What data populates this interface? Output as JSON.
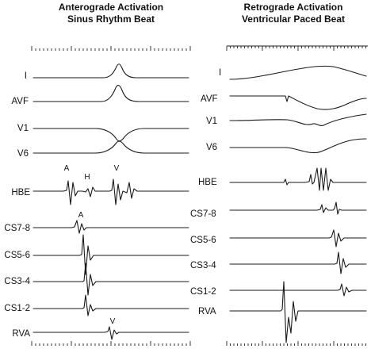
{
  "panels": [
    {
      "id": "anterograde",
      "title_line1": "Anterograde Activation",
      "title_line2": "Sinus Rhythm Beat",
      "leads": [
        {
          "label": "I"
        },
        {
          "label": "AVF"
        },
        {
          "label": "V1"
        },
        {
          "label": "V6"
        },
        {
          "label": "HBE"
        },
        {
          "label": "CS7-8"
        },
        {
          "label": "CS5-6"
        },
        {
          "label": "CS3-4"
        },
        {
          "label": "CS1-2"
        },
        {
          "label": "RVA"
        }
      ],
      "annotations": [
        {
          "text": "A",
          "lead": "HBE"
        },
        {
          "text": "H",
          "lead": "HBE"
        },
        {
          "text": "V",
          "lead": "HBE"
        },
        {
          "text": "A",
          "lead": "CS7-8"
        },
        {
          "text": "V",
          "lead": "RVA"
        }
      ]
    },
    {
      "id": "retrograde",
      "title_line1": "Retrograde Activation",
      "title_line2": "Ventricular Paced Beat",
      "leads": [
        {
          "label": "I"
        },
        {
          "label": "AVF"
        },
        {
          "label": "V1"
        },
        {
          "label": "V6"
        },
        {
          "label": "HBE"
        },
        {
          "label": "CS7-8"
        },
        {
          "label": "CS5-6"
        },
        {
          "label": "CS3-4"
        },
        {
          "label": "CS1-2"
        },
        {
          "label": "RVA"
        }
      ],
      "annotations": []
    }
  ]
}
